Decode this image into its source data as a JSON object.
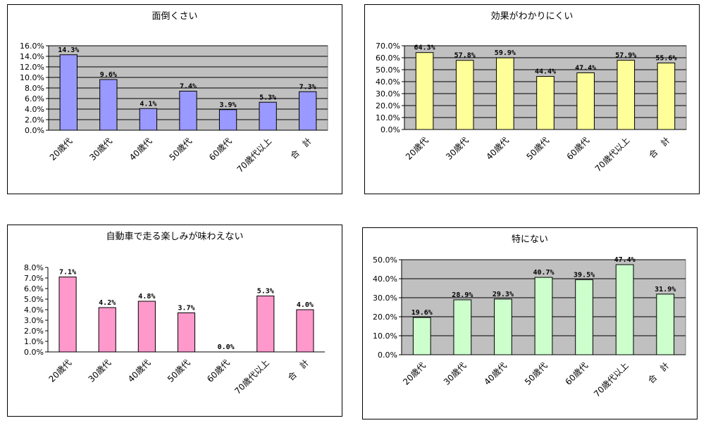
{
  "chart_data": [
    {
      "type": "bar",
      "title": "面倒くさい",
      "categories": [
        "20歳代",
        "30歳代",
        "40歳代",
        "50歳代",
        "60歳代",
        "70歳代以上",
        "合　計"
      ],
      "values": [
        14.3,
        9.6,
        4.1,
        7.4,
        3.9,
        5.3,
        7.3
      ],
      "value_labels": [
        "14.3%",
        "9.6%",
        "4.1%",
        "7.4%",
        "3.9%",
        "5.3%",
        "7.3%"
      ],
      "yticks": [
        "0.0%",
        "2.0%",
        "4.0%",
        "6.0%",
        "8.0%",
        "10.0%",
        "12.0%",
        "14.0%",
        "16.0%"
      ],
      "ylim": [
        0,
        16
      ],
      "ystep": 2,
      "bar_color": "#9999ff",
      "plot_bg": "#c0c0c0",
      "grid": true,
      "xlabel": "",
      "ylabel": ""
    },
    {
      "type": "bar",
      "title": "効果がわかりにくい",
      "categories": [
        "20歳代",
        "30歳代",
        "40歳代",
        "50歳代",
        "60歳代",
        "70歳代以上",
        "合　計"
      ],
      "values": [
        64.3,
        57.8,
        59.9,
        44.4,
        47.4,
        57.9,
        55.6
      ],
      "value_labels": [
        "64.3%",
        "57.8%",
        "59.9%",
        "44.4%",
        "47.4%",
        "57.9%",
        "55.6%"
      ],
      "yticks": [
        "0.0%",
        "10.0%",
        "20.0%",
        "30.0%",
        "40.0%",
        "50.0%",
        "60.0%",
        "70.0%"
      ],
      "ylim": [
        0,
        70
      ],
      "ystep": 10,
      "bar_color": "#ffff99",
      "plot_bg": "#c0c0c0",
      "grid": true,
      "xlabel": "",
      "ylabel": ""
    },
    {
      "type": "bar",
      "title": "自動車で走る楽しみが味わえない",
      "categories": [
        "20歳代",
        "30歳代",
        "40歳代",
        "50歳代",
        "60歳代",
        "70歳代以上",
        "合　計"
      ],
      "values": [
        7.1,
        4.2,
        4.8,
        3.7,
        0.0,
        5.3,
        4.0
      ],
      "value_labels": [
        "7.1%",
        "4.2%",
        "4.8%",
        "3.7%",
        "0.0%",
        "5.3%",
        "4.0%"
      ],
      "yticks": [
        "0.0%",
        "1.0%",
        "2.0%",
        "3.0%",
        "4.0%",
        "5.0%",
        "6.0%",
        "7.0%",
        "8.0%"
      ],
      "ylim": [
        0,
        8
      ],
      "ystep": 1,
      "bar_color": "#ff99cc",
      "plot_bg": "#ffffff",
      "grid": false,
      "xlabel": "",
      "ylabel": ""
    },
    {
      "type": "bar",
      "title": "特にない",
      "categories": [
        "20歳代",
        "30歳代",
        "40歳代",
        "50歳代",
        "60歳代",
        "70歳代以上",
        "合　計"
      ],
      "values": [
        19.6,
        28.9,
        29.3,
        40.7,
        39.5,
        47.4,
        31.9
      ],
      "value_labels": [
        "19.6%",
        "28.9%",
        "29.3%",
        "40.7%",
        "39.5%",
        "47.4%",
        "31.9%"
      ],
      "yticks": [
        "0.0%",
        "10.0%",
        "20.0%",
        "30.0%",
        "40.0%",
        "50.0%"
      ],
      "ylim": [
        0,
        50
      ],
      "ystep": 10,
      "bar_color": "#ccffcc",
      "plot_bg": "#c0c0c0",
      "grid": true,
      "xlabel": "",
      "ylabel": ""
    }
  ]
}
